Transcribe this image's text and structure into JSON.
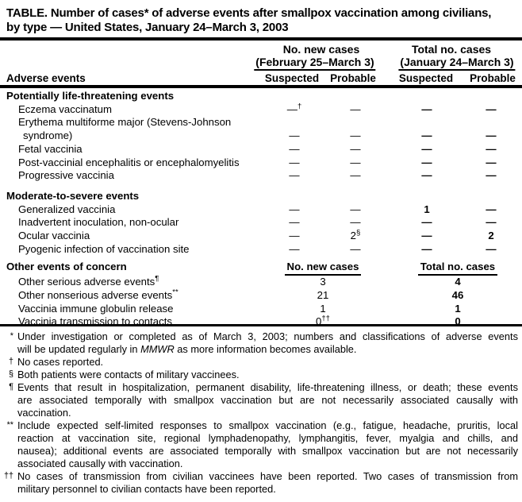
{
  "colors": {
    "text": "#000000",
    "background": "#ffffff",
    "rules": "#000000"
  },
  "title": {
    "line1": "TABLE. Number of cases* of adverse events after smallpox vaccination among civilians,",
    "line2": "by type — United States, January 24–March 3, 2003"
  },
  "header": {
    "row_label": "Adverse events",
    "groups": [
      {
        "title": "No. new cases",
        "subtitle": "(February 25–March 3)"
      },
      {
        "title": "Total no. cases",
        "subtitle": "(January 24–March 3)"
      }
    ],
    "sub_columns": [
      "Suspected",
      "Probable",
      "Suspected",
      "Probable"
    ]
  },
  "table": {
    "sections": [
      {
        "heading": "Potentially life-threatening events",
        "type": "four-col",
        "rows": [
          {
            "label": "Eczema vaccinatum",
            "values": [
              "—†",
              "—",
              "—",
              "—"
            ]
          },
          {
            "label": "Erythema multiforme major (Stevens-Johnson",
            "label2": "syndrome)",
            "values": [
              "—",
              "—",
              "—",
              "—"
            ]
          },
          {
            "label": "Fetal vaccinia",
            "values": [
              "—",
              "—",
              "—",
              "—"
            ]
          },
          {
            "label": "Post-vaccinial encephalitis or encephalomyelitis",
            "values": [
              "—",
              "—",
              "—",
              "—"
            ]
          },
          {
            "label": "Progressive vaccinia",
            "values": [
              "—",
              "—",
              "—",
              "—"
            ]
          }
        ]
      },
      {
        "heading": "Moderate-to-severe events",
        "type": "four-col",
        "rows": [
          {
            "label": "Generalized vaccinia",
            "values": [
              "—",
              "—",
              "1",
              "—"
            ]
          },
          {
            "label": "Inadvertent inoculation, non-ocular",
            "values": [
              "—",
              "—",
              "—",
              "—"
            ]
          },
          {
            "label": "Ocular vaccinia",
            "values": [
              "—",
              "2§",
              "—",
              "2"
            ]
          },
          {
            "label": "Pyogenic infection of vaccination site",
            "values": [
              "—",
              "—",
              "—",
              "—"
            ]
          }
        ]
      },
      {
        "heading": "Other events of concern",
        "type": "two-col",
        "col_headers": [
          "No. new cases",
          "Total no. cases"
        ],
        "rows": [
          {
            "label": "Other serious adverse events¶",
            "values": [
              "3",
              "4"
            ]
          },
          {
            "label": "Other nonserious adverse events**",
            "values": [
              "21",
              "46"
            ]
          },
          {
            "label": "Vaccinia immune globulin release",
            "values": [
              "1",
              "1"
            ]
          },
          {
            "label": "Vaccinia transmission to contacts",
            "values": [
              "0††",
              "0"
            ]
          }
        ]
      }
    ]
  },
  "footnotes": [
    {
      "marker": "*",
      "lines": [
        "Under investigation or completed as of March 3, 2003; numbers and classifications of adverse events",
        "will be updated regularly in MMWR as more information becomes available."
      ]
    },
    {
      "marker": "†",
      "lines": [
        "No cases reported."
      ]
    },
    {
      "marker": "§",
      "lines": [
        "Both patients were contacts of military vaccinees."
      ]
    },
    {
      "marker": "¶",
      "lines": [
        "Events that result in hospitalization, permanent disability, life-threatening illness, or death; these events",
        "are associated temporally with smallpox vaccination but are not necessarily associated causally with",
        "vaccination."
      ]
    },
    {
      "marker": "**",
      "lines": [
        "Include expected self-limited responses to smallpox vaccination (e.g., fatigue, headache, pruritis, local",
        "reaction at vaccination site, regional lymphadenopathy, lymphangitis, fever, myalgia and chills, and",
        "nausea); additional events are associated temporally with smallpox vaccination but are not necessarily",
        "associated causally with vaccination."
      ]
    },
    {
      "marker": "††",
      "lines": [
        "No cases of transmission from civilian vaccinees have been reported. Two cases of transmission from",
        "military personnel to civilian contacts have been reported."
      ]
    }
  ]
}
